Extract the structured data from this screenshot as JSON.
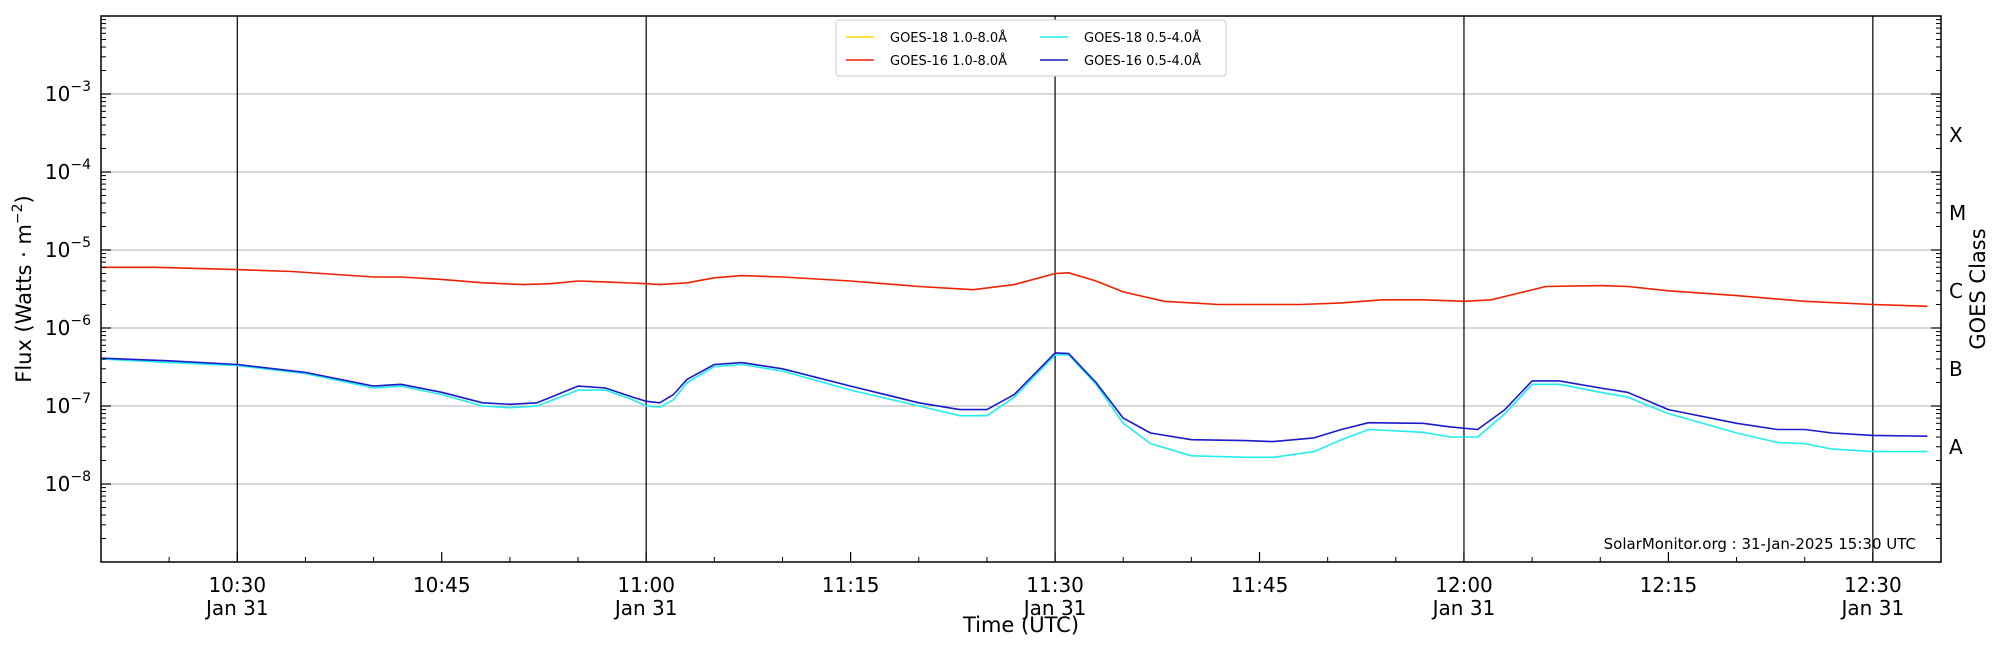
{
  "chart_data": {
    "type": "line",
    "title": "",
    "xlabel": "Time (UTC)",
    "ylabel_base": "Flux (Watts · m",
    "ylabel_exp": "−2",
    "ylabel_close": ")",
    "right_label": "GOES Class",
    "credit": "SolarMonitor.org : 31-Jan-2025 15:30 UTC",
    "y_scale": "log",
    "ylim": [
      1e-09,
      0.01
    ],
    "xlim": [
      "10:20",
      "12:35"
    ],
    "grid": "horizontal",
    "legend_position": "top-center",
    "y_ticks": [
      {
        "value": 1e-08,
        "base": "10",
        "exp": "−8"
      },
      {
        "value": 1e-07,
        "base": "10",
        "exp": "−7"
      },
      {
        "value": 1e-06,
        "base": "10",
        "exp": "−6"
      },
      {
        "value": 1e-05,
        "base": "10",
        "exp": "−5"
      },
      {
        "value": 0.0001,
        "base": "10",
        "exp": "−4"
      },
      {
        "value": 0.001,
        "base": "10",
        "exp": "−3"
      }
    ],
    "x_major_ticks": [
      {
        "time": "10:30",
        "label": "10:30",
        "date": "Jan 31"
      },
      {
        "time": "10:45",
        "label": "10:45",
        "date": ""
      },
      {
        "time": "11:00",
        "label": "11:00",
        "date": "Jan 31"
      },
      {
        "time": "11:15",
        "label": "11:15",
        "date": ""
      },
      {
        "time": "11:30",
        "label": "11:30",
        "date": "Jan 31"
      },
      {
        "time": "11:45",
        "label": "11:45",
        "date": ""
      },
      {
        "time": "12:00",
        "label": "12:00",
        "date": "Jan 31"
      },
      {
        "time": "12:15",
        "label": "12:15",
        "date": ""
      },
      {
        "time": "12:30",
        "label": "12:30",
        "date": "Jan 31"
      }
    ],
    "vertical_lines": [
      "10:30",
      "11:00",
      "11:30",
      "12:00",
      "12:30"
    ],
    "goes_classes": [
      {
        "label": "A",
        "value": 3e-08
      },
      {
        "label": "B",
        "value": 3e-07
      },
      {
        "label": "C",
        "value": 3e-06
      },
      {
        "label": "M",
        "value": 3e-05
      },
      {
        "label": "X",
        "value": 0.0003
      }
    ],
    "series": [
      {
        "name": "GOES-18 1.0-8.0Å",
        "color": "#ffd700",
        "points": []
      },
      {
        "name": "GOES-16 1.0-8.0Å",
        "color": "#ee2200",
        "points": [
          [
            "10:20",
            6e-06
          ],
          [
            "10:24",
            6e-06
          ],
          [
            "10:30",
            5.6e-06
          ],
          [
            "10:34",
            5.3e-06
          ],
          [
            "10:40",
            4.5e-06
          ],
          [
            "10:42",
            4.5e-06
          ],
          [
            "10:45",
            4.2e-06
          ],
          [
            "10:48",
            3.8e-06
          ],
          [
            "10:51",
            3.6e-06
          ],
          [
            "10:53",
            3.7e-06
          ],
          [
            "10:55",
            4e-06
          ],
          [
            "10:57",
            3.9e-06
          ],
          [
            "11:00",
            3.7e-06
          ],
          [
            "11:01",
            3.6e-06
          ],
          [
            "11:03",
            3.8e-06
          ],
          [
            "11:05",
            4.4e-06
          ],
          [
            "11:07",
            4.7e-06
          ],
          [
            "11:10",
            4.5e-06
          ],
          [
            "11:15",
            4e-06
          ],
          [
            "11:20",
            3.4e-06
          ],
          [
            "11:24",
            3.1e-06
          ],
          [
            "11:27",
            3.6e-06
          ],
          [
            "11:30",
            5e-06
          ],
          [
            "11:31",
            5.1e-06
          ],
          [
            "11:33",
            4e-06
          ],
          [
            "11:35",
            2.9e-06
          ],
          [
            "11:38",
            2.2e-06
          ],
          [
            "11:42",
            2e-06
          ],
          [
            "11:45",
            2e-06
          ],
          [
            "11:48",
            2e-06
          ],
          [
            "11:51",
            2.1e-06
          ],
          [
            "11:54",
            2.3e-06
          ],
          [
            "11:57",
            2.3e-06
          ],
          [
            "12:00",
            2.2e-06
          ],
          [
            "12:02",
            2.3e-06
          ],
          [
            "12:04",
            2.8e-06
          ],
          [
            "12:06",
            3.4e-06
          ],
          [
            "12:10",
            3.5e-06
          ],
          [
            "12:12",
            3.4e-06
          ],
          [
            "12:15",
            3e-06
          ],
          [
            "12:20",
            2.6e-06
          ],
          [
            "12:25",
            2.2e-06
          ],
          [
            "12:30",
            2e-06
          ],
          [
            "12:34",
            1.9e-06
          ]
        ]
      },
      {
        "name": "GOES-18 0.5-4.0Å",
        "color": "#22eeee",
        "points": [
          [
            "10:20",
            4e-07
          ],
          [
            "10:25",
            3.6e-07
          ],
          [
            "10:30",
            3.3e-07
          ],
          [
            "10:35",
            2.6e-07
          ],
          [
            "10:40",
            1.7e-07
          ],
          [
            "10:42",
            1.8e-07
          ],
          [
            "10:45",
            1.4e-07
          ],
          [
            "10:48",
            1e-07
          ],
          [
            "10:50",
            9.5e-08
          ],
          [
            "10:52",
            1e-07
          ],
          [
            "10:55",
            1.6e-07
          ],
          [
            "10:57",
            1.6e-07
          ],
          [
            "10:59",
            1.2e-07
          ],
          [
            "11:00",
            1e-07
          ],
          [
            "11:01",
            9.7e-08
          ],
          [
            "11:02",
            1.2e-07
          ],
          [
            "11:03",
            2e-07
          ],
          [
            "11:05",
            3.2e-07
          ],
          [
            "11:07",
            3.4e-07
          ],
          [
            "11:10",
            2.8e-07
          ],
          [
            "11:15",
            1.6e-07
          ],
          [
            "11:20",
            1e-07
          ],
          [
            "11:23",
            7.5e-08
          ],
          [
            "11:25",
            7.5e-08
          ],
          [
            "11:27",
            1.3e-07
          ],
          [
            "11:30",
            4.5e-07
          ],
          [
            "11:31",
            4.5e-07
          ],
          [
            "11:33",
            1.9e-07
          ],
          [
            "11:35",
            6e-08
          ],
          [
            "11:37",
            3.3e-08
          ],
          [
            "11:40",
            2.3e-08
          ],
          [
            "11:44",
            2.2e-08
          ],
          [
            "11:46",
            2.2e-08
          ],
          [
            "11:49",
            2.6e-08
          ],
          [
            "11:51",
            3.7e-08
          ],
          [
            "11:53",
            5e-08
          ],
          [
            "11:57",
            4.6e-08
          ],
          [
            "11:59",
            4e-08
          ],
          [
            "12:01",
            4e-08
          ],
          [
            "12:03",
            8e-08
          ],
          [
            "12:05",
            1.9e-07
          ],
          [
            "12:07",
            1.9e-07
          ],
          [
            "12:10",
            1.5e-07
          ],
          [
            "12:12",
            1.3e-07
          ],
          [
            "12:15",
            8e-08
          ],
          [
            "12:20",
            4.5e-08
          ],
          [
            "12:23",
            3.4e-08
          ],
          [
            "12:25",
            3.3e-08
          ],
          [
            "12:27",
            2.8e-08
          ],
          [
            "12:30",
            2.6e-08
          ],
          [
            "12:34",
            2.6e-08
          ]
        ]
      },
      {
        "name": "GOES-16 0.5-4.0Å",
        "color": "#1a1acc",
        "points": [
          [
            "10:20",
            4.1e-07
          ],
          [
            "10:25",
            3.8e-07
          ],
          [
            "10:30",
            3.4e-07
          ],
          [
            "10:35",
            2.7e-07
          ],
          [
            "10:40",
            1.8e-07
          ],
          [
            "10:42",
            1.9e-07
          ],
          [
            "10:45",
            1.5e-07
          ],
          [
            "10:48",
            1.1e-07
          ],
          [
            "10:50",
            1.05e-07
          ],
          [
            "10:52",
            1.1e-07
          ],
          [
            "10:55",
            1.8e-07
          ],
          [
            "10:57",
            1.7e-07
          ],
          [
            "10:59",
            1.3e-07
          ],
          [
            "11:00",
            1.15e-07
          ],
          [
            "11:01",
            1.1e-07
          ],
          [
            "11:02",
            1.4e-07
          ],
          [
            "11:03",
            2.2e-07
          ],
          [
            "11:05",
            3.4e-07
          ],
          [
            "11:07",
            3.6e-07
          ],
          [
            "11:10",
            3e-07
          ],
          [
            "11:15",
            1.8e-07
          ],
          [
            "11:20",
            1.1e-07
          ],
          [
            "11:23",
            9e-08
          ],
          [
            "11:25",
            9e-08
          ],
          [
            "11:27",
            1.4e-07
          ],
          [
            "11:30",
            4.8e-07
          ],
          [
            "11:31",
            4.7e-07
          ],
          [
            "11:33",
            2e-07
          ],
          [
            "11:35",
            7e-08
          ],
          [
            "11:37",
            4.5e-08
          ],
          [
            "11:40",
            3.7e-08
          ],
          [
            "11:44",
            3.6e-08
          ],
          [
            "11:46",
            3.5e-08
          ],
          [
            "11:49",
            3.9e-08
          ],
          [
            "11:51",
            5e-08
          ],
          [
            "11:53",
            6.1e-08
          ],
          [
            "11:57",
            6e-08
          ],
          [
            "11:59",
            5.4e-08
          ],
          [
            "12:01",
            5e-08
          ],
          [
            "12:03",
            9e-08
          ],
          [
            "12:05",
            2.1e-07
          ],
          [
            "12:07",
            2.1e-07
          ],
          [
            "12:10",
            1.7e-07
          ],
          [
            "12:12",
            1.5e-07
          ],
          [
            "12:15",
            9e-08
          ],
          [
            "12:20",
            6e-08
          ],
          [
            "12:23",
            5e-08
          ],
          [
            "12:25",
            5e-08
          ],
          [
            "12:27",
            4.5e-08
          ],
          [
            "12:30",
            4.2e-08
          ],
          [
            "12:34",
            4.1e-08
          ]
        ]
      }
    ]
  }
}
